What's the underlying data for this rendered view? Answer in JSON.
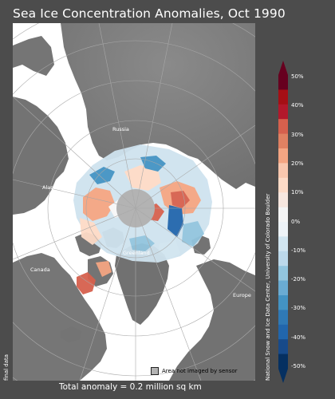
{
  "title": "Sea Ice Concentration Anomalies, Oct 1990",
  "map_labels": {
    "russia": "Russia",
    "alaska": "Alaska",
    "greenland": "Greenland",
    "canada": "Canada",
    "europe": "Europe"
  },
  "legend": {
    "not_imaged": "Area not imaged by sensor"
  },
  "side_left_text": "final data",
  "side_right_text": "National Snow and Ice Data Center, University of Colorado Boulder",
  "colorbar": {
    "ticks": [
      "50%",
      "40%",
      "30%",
      "20%",
      "10%",
      "0%",
      "-10%",
      "-20%",
      "-30%",
      "-40%",
      "-50%"
    ],
    "top_color": "#67001f",
    "bottom_color": "#053061"
  },
  "footer": "Total anomaly = 0.2 million sq km",
  "colors": {
    "background": "#4c4c4c",
    "ocean": "#ffffff",
    "land": "#7a7a7a",
    "pole_hole": "#b3b3b3"
  }
}
